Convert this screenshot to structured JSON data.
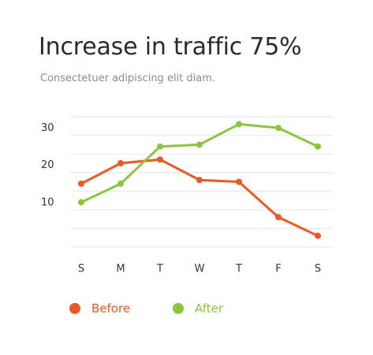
{
  "header": {
    "title": "Increase in traffic 75%",
    "subtitle": "Consectetuer adipiscing elit diam."
  },
  "colors": {
    "before": "#eb5a24",
    "after": "#8cc63f",
    "grid": "#e6e6e6",
    "tick_text": "#333333"
  },
  "chart_data": {
    "type": "line",
    "title": "Increase in traffic 75%",
    "subtitle": "Consectetuer adipiscing elit diam.",
    "categories": [
      "S",
      "M",
      "T",
      "W",
      "T",
      "F",
      "S"
    ],
    "series": [
      {
        "name": "Before",
        "color": "#eb5a24",
        "values": [
          17,
          22.5,
          23.5,
          18,
          17.5,
          8,
          3
        ]
      },
      {
        "name": "After",
        "color": "#8cc63f",
        "values": [
          12,
          17,
          27,
          27.5,
          33,
          32,
          27
        ]
      }
    ],
    "y_ticks": [
      10,
      20,
      30
    ],
    "ylim": [
      0,
      35
    ],
    "grid": true,
    "legend": "bottom-left",
    "xlabel": "",
    "ylabel": ""
  },
  "legend": {
    "items": [
      {
        "label": "Before",
        "color": "#eb5a24"
      },
      {
        "label": "After",
        "color": "#8cc63f"
      }
    ]
  }
}
